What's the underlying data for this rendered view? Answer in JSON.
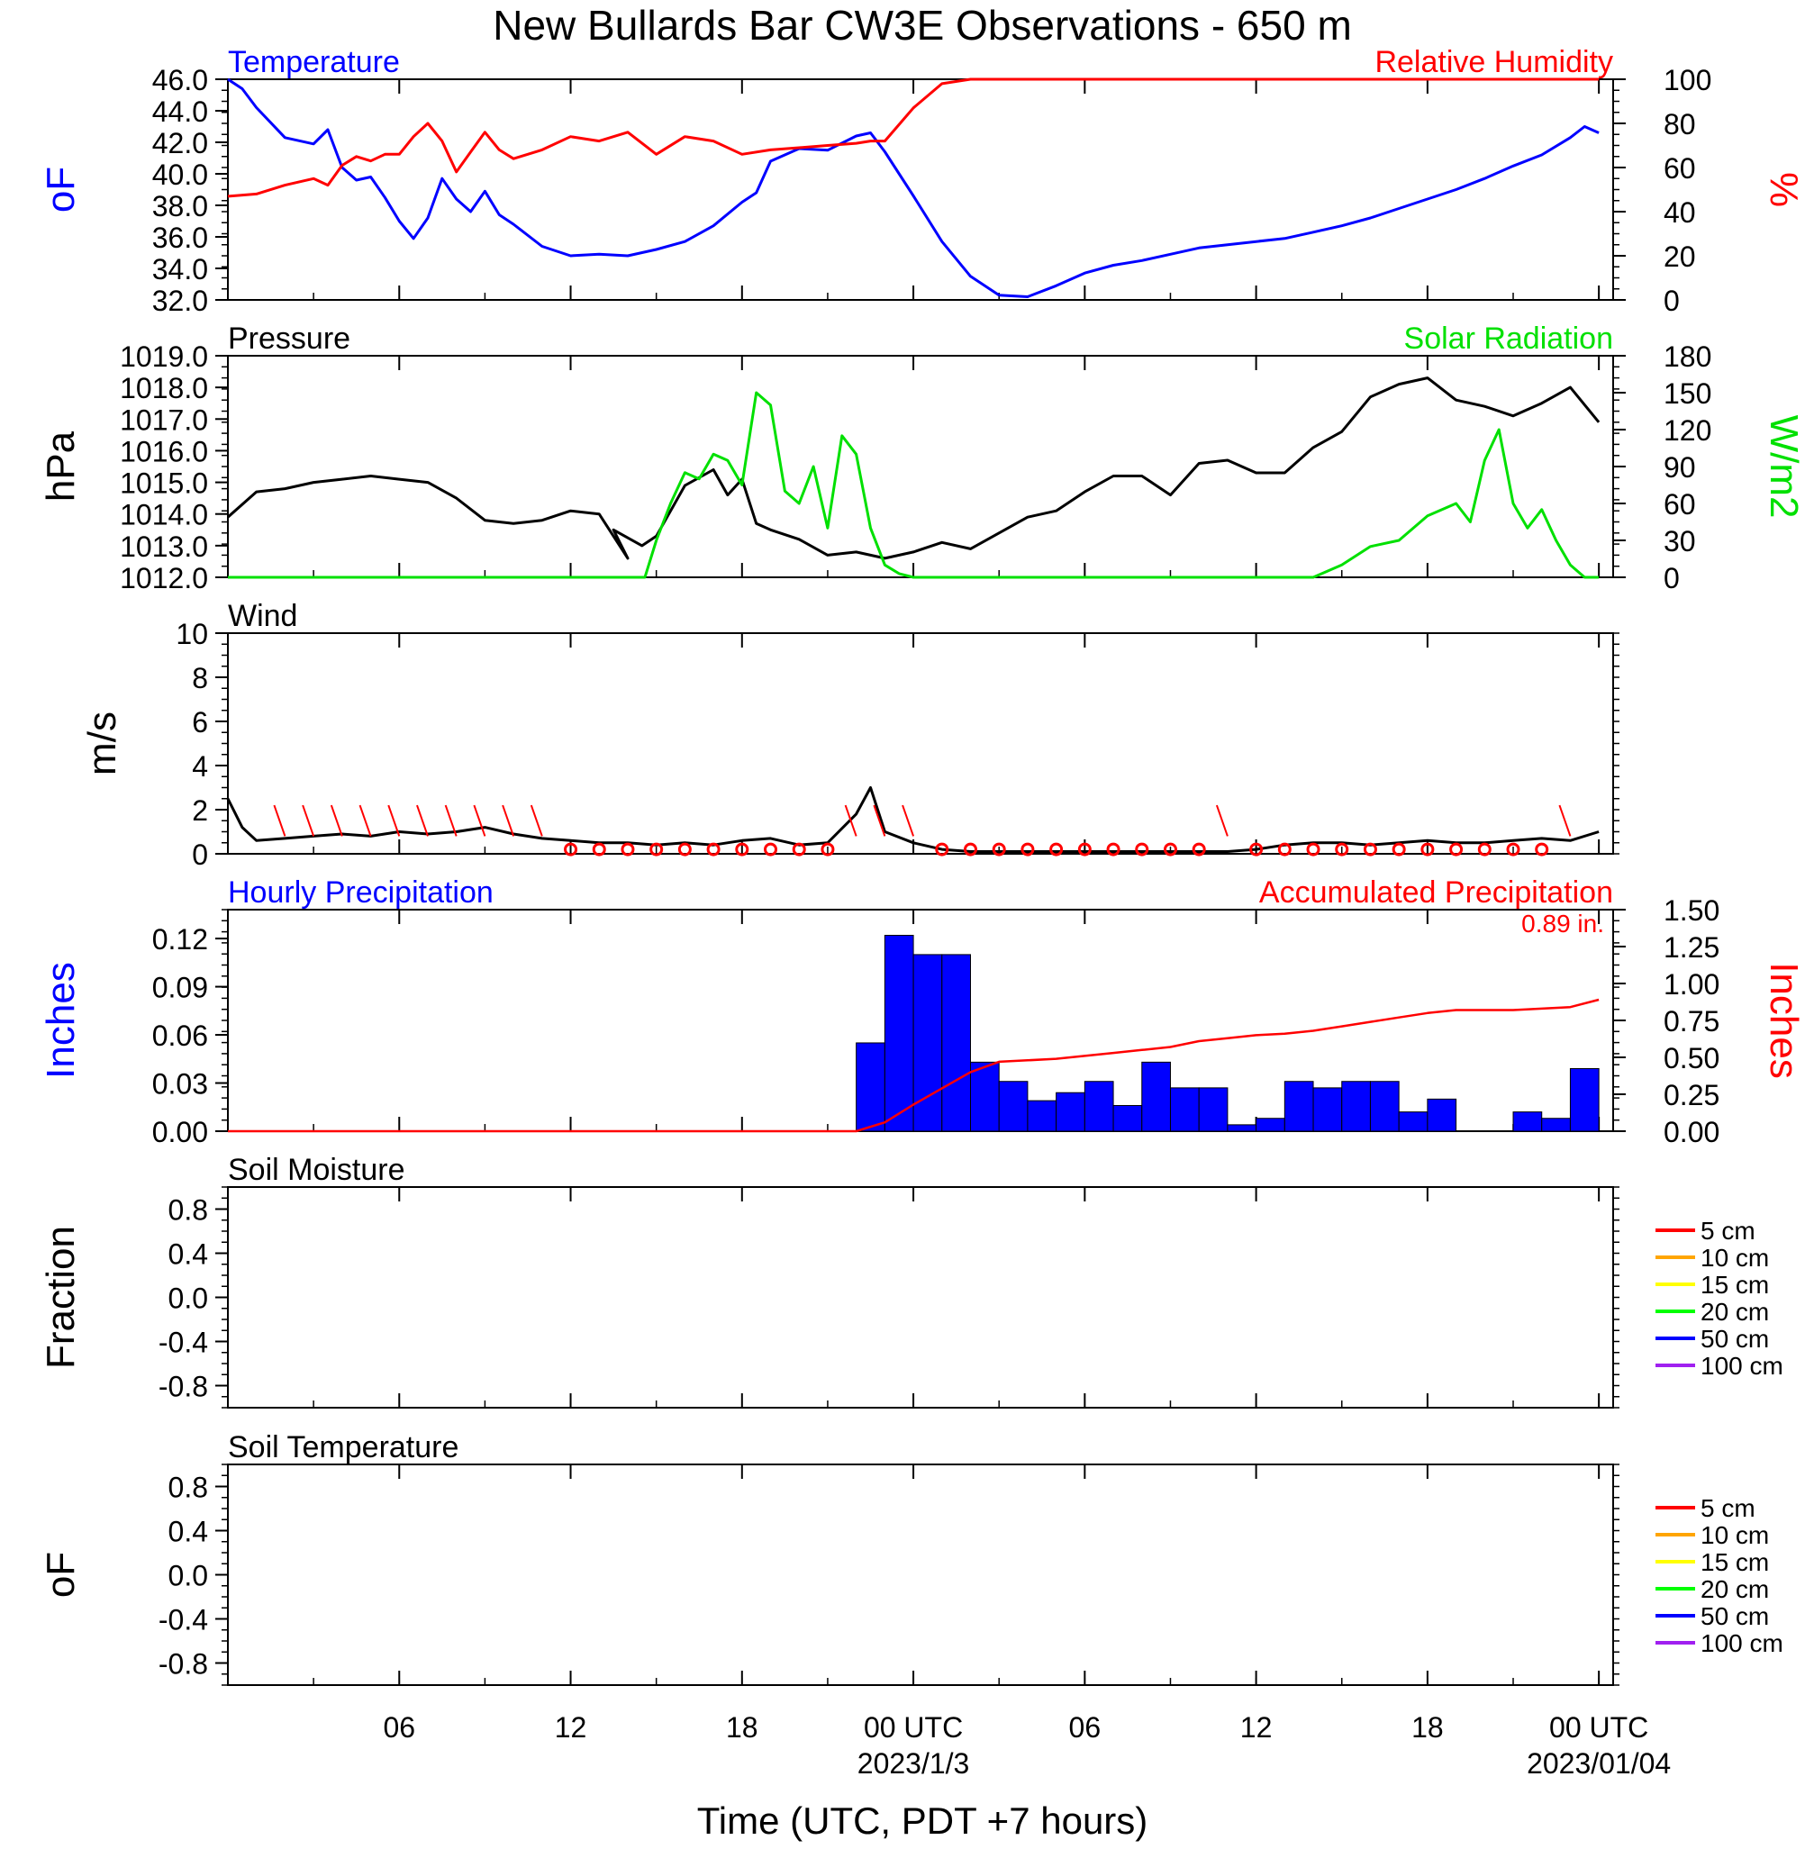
{
  "title": "New Bullards Bar CW3E Observations - 650 m",
  "xlabel": "Time (UTC, PDT +7 hours)",
  "x_ticks": [
    {
      "hour": 6,
      "label": "06"
    },
    {
      "hour": 12,
      "label": "12"
    },
    {
      "hour": 18,
      "label": "18"
    },
    {
      "hour": 24,
      "label": "00 UTC",
      "sub": "2023/1/3"
    },
    {
      "hour": 30,
      "label": "06"
    },
    {
      "hour": 36,
      "label": "12"
    },
    {
      "hour": 42,
      "label": "18"
    },
    {
      "hour": 48,
      "label": "00 UTC",
      "sub": "2023/01/04"
    }
  ],
  "colors": {
    "temperature": "#0000ff",
    "humidity": "#ff0000",
    "pressure": "#000000",
    "solar": "#00e000",
    "wind": "#000000",
    "barb": "#ff0000",
    "hourly": "#0000ff",
    "accum": "#ff0000"
  },
  "chart_data": [
    {
      "type": "line",
      "panel": "temp_rh",
      "title_left": "Temperature",
      "title_right": "Relative Humidity",
      "ylabel_left": "oF",
      "ylabel_right": "%",
      "ylim_left": [
        32,
        46
      ],
      "ylim_right": [
        0,
        100
      ],
      "yticks_left": [
        "32.0",
        "34.0",
        "36.0",
        "38.0",
        "40.0",
        "42.0",
        "44.0",
        "46.0"
      ],
      "yticks_right": [
        "0",
        "20",
        "40",
        "60",
        "80",
        "100"
      ],
      "series": [
        {
          "key": "temperature",
          "axis": "left",
          "x": [
            0,
            0.5,
            1,
            2,
            3,
            3.5,
            4,
            4.5,
            5,
            5.5,
            6,
            6.5,
            7,
            7.5,
            8,
            8.5,
            9,
            9.5,
            10,
            11,
            12,
            13,
            14,
            15,
            16,
            17,
            18,
            18.5,
            19,
            20,
            21,
            22,
            22.5,
            23,
            24,
            25,
            26,
            27,
            28,
            29,
            30,
            31,
            32,
            33,
            34,
            35,
            36,
            37,
            38,
            39,
            40,
            41,
            42,
            43,
            44,
            45,
            46,
            47,
            47.5,
            48
          ],
          "values": [
            46.0,
            45.4,
            44.2,
            42.3,
            41.9,
            42.8,
            40.4,
            39.6,
            39.8,
            38.5,
            37.0,
            35.9,
            37.2,
            39.7,
            38.4,
            37.6,
            38.9,
            37.4,
            36.8,
            35.4,
            34.8,
            34.9,
            34.8,
            35.2,
            35.7,
            36.7,
            38.2,
            38.8,
            40.8,
            41.6,
            41.5,
            42.4,
            42.6,
            41.4,
            38.6,
            35.7,
            33.5,
            32.3,
            32.2,
            32.9,
            33.7,
            34.2,
            34.5,
            34.9,
            35.3,
            35.5,
            35.7,
            35.9,
            36.3,
            36.7,
            37.2,
            37.8,
            38.4,
            39.0,
            39.7,
            40.5,
            41.2,
            42.3,
            43.0,
            42.6
          ]
        },
        {
          "key": "humidity",
          "axis": "right",
          "x": [
            0,
            1,
            2,
            3,
            3.5,
            4,
            4.5,
            5,
            5.5,
            6,
            6.5,
            7,
            7.5,
            8,
            8.5,
            9,
            9.5,
            10,
            11,
            12,
            13,
            14,
            15,
            16,
            17,
            18,
            19,
            20,
            21,
            22,
            22.5,
            23,
            24,
            25,
            26,
            27,
            28,
            30,
            32,
            34,
            36,
            38,
            40,
            42,
            44,
            46,
            48
          ],
          "values": [
            47,
            48,
            52,
            55,
            52,
            61,
            65,
            63,
            66,
            66,
            74,
            80,
            72,
            58,
            67,
            76,
            68,
            64,
            68,
            74,
            72,
            76,
            66,
            74,
            72,
            66,
            68,
            69,
            70,
            71,
            72,
            72,
            87,
            98,
            100,
            100,
            100,
            100,
            100,
            100,
            100,
            100,
            100,
            100,
            100,
            100,
            100
          ]
        }
      ]
    },
    {
      "type": "line",
      "panel": "pressure_solar",
      "title_left": "Pressure",
      "title_right": "Solar Radiation",
      "ylabel_left": "hPa",
      "ylabel_right": "W/m2",
      "ylim_left": [
        1012,
        1019
      ],
      "ylim_right": [
        0,
        180
      ],
      "yticks_left": [
        "1012.0",
        "1013.0",
        "1014.0",
        "1015.0",
        "1016.0",
        "1017.0",
        "1018.0",
        "1019.0"
      ],
      "yticks_right": [
        "0",
        "30",
        "60",
        "90",
        "120",
        "150",
        "180"
      ],
      "series": [
        {
          "key": "pressure",
          "axis": "left",
          "x": [
            0,
            1,
            2,
            3,
            4,
            5,
            6,
            7,
            8,
            9,
            10,
            11,
            12,
            13,
            14,
            13.5,
            14.5,
            15,
            16,
            17,
            17.5,
            18,
            18.5,
            19,
            20,
            21,
            22,
            23,
            24,
            25,
            26,
            27,
            28,
            29,
            30,
            31,
            32,
            33,
            34,
            35,
            36,
            37,
            38,
            39,
            40,
            41,
            42,
            43,
            44,
            45,
            46,
            47,
            48
          ],
          "values": [
            1013.9,
            1014.7,
            1014.8,
            1015.0,
            1015.1,
            1015.2,
            1015.1,
            1015.0,
            1014.5,
            1013.8,
            1013.7,
            1013.8,
            1014.1,
            1014.0,
            1012.6,
            1013.5,
            1013.0,
            1013.3,
            1014.9,
            1015.4,
            1014.6,
            1015.1,
            1013.7,
            1013.5,
            1013.2,
            1012.7,
            1012.8,
            1012.6,
            1012.8,
            1013.1,
            1012.9,
            1013.4,
            1013.9,
            1014.1,
            1014.7,
            1015.2,
            1015.2,
            1014.6,
            1015.6,
            1015.7,
            1015.3,
            1015.3,
            1016.1,
            1016.6,
            1017.7,
            1018.1,
            1018.3,
            1017.6,
            1017.4,
            1017.1,
            1017.5,
            1018.0,
            1016.9
          ]
        },
        {
          "key": "solar",
          "axis": "right",
          "x": [
            0,
            14,
            14.6,
            15,
            15.5,
            16,
            16.5,
            17,
            17.5,
            18,
            18.5,
            19,
            19.5,
            20,
            20.5,
            21,
            21.5,
            22,
            22.5,
            23,
            23.5,
            24,
            30,
            38,
            39,
            40,
            41,
            42,
            43,
            43.5,
            44,
            44.5,
            45,
            45.5,
            46,
            46.5,
            47,
            47.5,
            48
          ],
          "values": [
            0,
            0,
            0,
            30,
            60,
            85,
            80,
            100,
            95,
            75,
            150,
            140,
            70,
            60,
            90,
            40,
            115,
            100,
            40,
            10,
            3,
            0,
            0,
            0,
            10,
            25,
            30,
            50,
            60,
            45,
            95,
            120,
            60,
            40,
            55,
            30,
            10,
            0,
            0
          ]
        }
      ]
    },
    {
      "type": "line",
      "panel": "wind",
      "title_left": "Wind",
      "ylabel_left": "m/s",
      "ylim_left": [
        0,
        10
      ],
      "yticks_left": [
        "0",
        "2",
        "4",
        "6",
        "8",
        "10"
      ],
      "series": [
        {
          "key": "wind",
          "axis": "left",
          "x": [
            0,
            0.5,
            1,
            2,
            3,
            4,
            5,
            6,
            7,
            8,
            9,
            10,
            11,
            12,
            13,
            14,
            15,
            16,
            17,
            18,
            19,
            20,
            21,
            22,
            22.5,
            23,
            24,
            25,
            26,
            27,
            28,
            29,
            30,
            31,
            32,
            33,
            34,
            35,
            36,
            37,
            38,
            39,
            40,
            41,
            42,
            43,
            44,
            45,
            46,
            47,
            48
          ],
          "values": [
            2.5,
            1.2,
            0.6,
            0.7,
            0.8,
            0.9,
            0.8,
            1.0,
            0.9,
            1.0,
            1.2,
            0.9,
            0.7,
            0.6,
            0.5,
            0.5,
            0.4,
            0.5,
            0.4,
            0.6,
            0.7,
            0.4,
            0.5,
            1.8,
            3.0,
            1.0,
            0.5,
            0.2,
            0.1,
            0.1,
            0.1,
            0.1,
            0.1,
            0.1,
            0.1,
            0.1,
            0.1,
            0.1,
            0.2,
            0.4,
            0.5,
            0.5,
            0.4,
            0.5,
            0.6,
            0.5,
            0.5,
            0.6,
            0.7,
            0.6,
            1.0
          ]
        }
      ]
    },
    {
      "type": "bar",
      "panel": "precip",
      "title_left": "Hourly Precipitation",
      "title_right": "Accumulated Precipitation",
      "annotation": "0.89 in.",
      "ylabel_left": "Inches",
      "ylabel_right": "Inches",
      "ylim_left": [
        0,
        0.138
      ],
      "ylim_right": [
        0,
        1.5
      ],
      "yticks_left": [
        "0.00",
        "0.03",
        "0.06",
        "0.09",
        "0.12"
      ],
      "yticks_right": [
        "0.00",
        "0.25",
        "0.50",
        "0.75",
        "1.00",
        "1.25",
        "1.50"
      ],
      "series": [
        {
          "key": "hourly",
          "axis": "left",
          "x": [
            22,
            23,
            24,
            25,
            26,
            27,
            28,
            29,
            30,
            31,
            32,
            33,
            34,
            35,
            36,
            37,
            38,
            39,
            40,
            41,
            42,
            43,
            44,
            45,
            46,
            47
          ],
          "values": [
            0.055,
            0.122,
            0.11,
            0.11,
            0.043,
            0.031,
            0.019,
            0.024,
            0.031,
            0.016,
            0.043,
            0.027,
            0.027,
            0.004,
            0.008,
            0.031,
            0.027,
            0.031,
            0.031,
            0.012,
            0.02,
            0,
            0,
            0.012,
            0.008,
            0.039
          ]
        },
        {
          "key": "accum",
          "axis": "right",
          "x": [
            0,
            22,
            23,
            24,
            25,
            26,
            27,
            28,
            29,
            30,
            31,
            32,
            33,
            34,
            35,
            36,
            37,
            38,
            39,
            40,
            41,
            42,
            43,
            44,
            45,
            46,
            47,
            48
          ],
          "values": [
            0,
            0,
            0.06,
            0.18,
            0.29,
            0.4,
            0.47,
            0.48,
            0.49,
            0.51,
            0.53,
            0.55,
            0.57,
            0.61,
            0.63,
            0.65,
            0.66,
            0.68,
            0.71,
            0.74,
            0.77,
            0.8,
            0.82,
            0.82,
            0.82,
            0.83,
            0.84,
            0.89
          ]
        }
      ]
    },
    {
      "type": "line",
      "panel": "soil_moisture",
      "title_left": "Soil Moisture",
      "ylabel_left": "Fraction",
      "ylim_left": [
        -1,
        1
      ],
      "yticks_left": [
        "-0.8",
        "-0.4",
        "0.0",
        "0.4",
        "0.8"
      ],
      "legend": [
        "5 cm",
        "10 cm",
        "15 cm",
        "20 cm",
        "50 cm",
        "100 cm"
      ],
      "legend_colors": [
        "#ff0000",
        "#ffa500",
        "#ffff00",
        "#00ff00",
        "#0000ff",
        "#a020f0"
      ],
      "series": []
    },
    {
      "type": "line",
      "panel": "soil_temp",
      "title_left": "Soil Temperature",
      "ylabel_left": "oF",
      "ylim_left": [
        -1,
        1
      ],
      "yticks_left": [
        "-0.8",
        "-0.4",
        "0.0",
        "0.4",
        "0.8"
      ],
      "legend": [
        "5 cm",
        "10 cm",
        "15 cm",
        "20 cm",
        "50 cm",
        "100 cm"
      ],
      "legend_colors": [
        "#ff0000",
        "#ffa500",
        "#ffff00",
        "#00ff00",
        "#0000ff",
        "#a020f0"
      ],
      "series": []
    }
  ]
}
